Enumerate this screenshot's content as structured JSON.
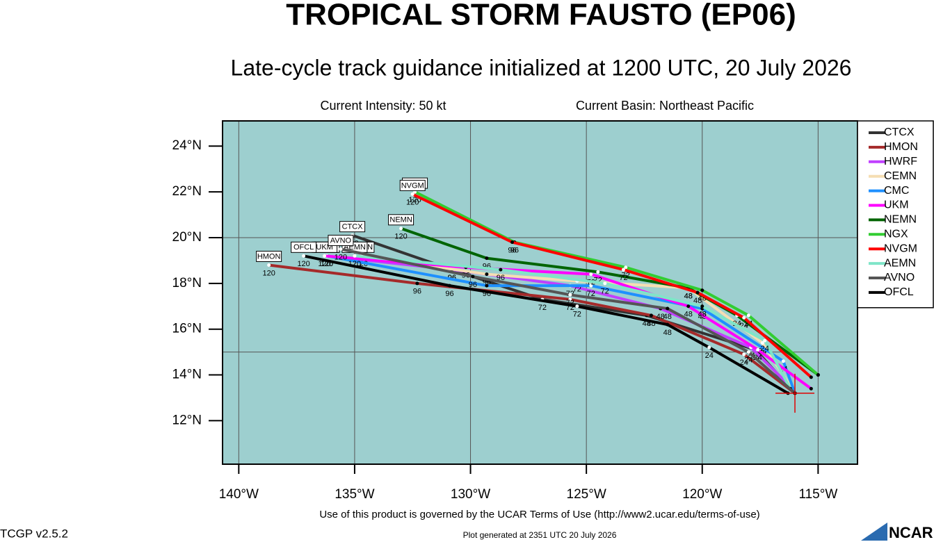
{
  "chart_data": {
    "type": "line",
    "title": "TROPICAL STORM FAUSTO (EP06)",
    "subtitle": "Late-cycle track guidance initialized at 1200 UTC, 20 July 2026",
    "intensity": "Current Intensity: 50 kt",
    "basin": "Current Basin: Northeast Pacific",
    "terms": "Use of this product is governed by the UCAR Terms of Use (http://www2.ucar.edu/terms-of-use)",
    "version": "TCGP v2.5.2",
    "generated": "Plot generated at 2351 UTC   20 July 2026",
    "logo": "NCAR",
    "xlim": [
      -140.7,
      -113.3
    ],
    "ylim": [
      10.1,
      25.1
    ],
    "xticks": [
      {
        "value": -140,
        "label": "140°W"
      },
      {
        "value": -135,
        "label": "135°W"
      },
      {
        "value": -130,
        "label": "130°W"
      },
      {
        "value": -125,
        "label": "125°W"
      },
      {
        "value": -120,
        "label": "120°W"
      },
      {
        "value": -115,
        "label": "115°W"
      }
    ],
    "yticks": [
      {
        "value": 12,
        "label": "12°N"
      },
      {
        "value": 14,
        "label": "14°N"
      },
      {
        "value": 16,
        "label": "16°N"
      },
      {
        "value": 18,
        "label": "18°N"
      },
      {
        "value": 20,
        "label": "20°N"
      },
      {
        "value": 22,
        "label": "22°N"
      },
      {
        "value": 24,
        "label": "24°N"
      }
    ],
    "ygrid": [
      15,
      20
    ],
    "background": "#9dcfcf",
    "hours": [
      null,
      24,
      48,
      72,
      96,
      120
    ],
    "current_position": {
      "x": -116.0,
      "y": 13.2
    },
    "legend": "right",
    "series": [
      {
        "name": "CTCX",
        "color": "#333333",
        "x": [
          -116.0,
          -117.7,
          -122.4,
          -126.9,
          -130.8,
          -135.1
        ],
        "values": [
          13.2,
          15.1,
          16.6,
          17.3,
          18.6,
          20.1
        ]
      },
      {
        "name": "HMON",
        "color": "#a52a2a",
        "x": [
          -116.0,
          -118.2,
          -122.2,
          -125.7,
          -132.3,
          -138.7
        ],
        "values": [
          13.2,
          14.9,
          16.6,
          17.3,
          18.0,
          18.8
        ]
      },
      {
        "name": "HWRF",
        "color": "#c040ff",
        "x": [
          -116.1,
          -117.9,
          -121.8,
          -125.7,
          -130.8,
          -136.2
        ],
        "values": [
          13.4,
          15.2,
          16.9,
          17.9,
          18.6,
          19.2
        ]
      },
      {
        "name": "CEMN",
        "color": "#f5deb3",
        "x": [
          -116.0,
          -117.4,
          -120.6,
          -125.4,
          -129.3,
          -134.7
        ],
        "values": [
          13.2,
          15.4,
          17.8,
          18.1,
          18.4,
          19.2
        ]
      },
      {
        "name": "CMC",
        "color": "#1e90ff",
        "x": [
          -116.0,
          -116.5,
          -120.0,
          -124.8,
          -129.3,
          -136.2
        ],
        "values": [
          13.2,
          14.6,
          16.9,
          17.9,
          17.9,
          19.2
        ]
      },
      {
        "name": "UKM",
        "color": "#ff00ff",
        "x": [
          -115.3,
          -117.6,
          -120.6,
          -124.8,
          -130.2,
          -136.3
        ],
        "values": [
          13.4,
          15.1,
          17.0,
          18.4,
          18.7,
          19.2
        ]
      },
      {
        "name": "NEMN",
        "color": "#006400",
        "x": [
          -115.0,
          -118.5,
          -120.6,
          -124.5,
          -129.3,
          -133.0
        ],
        "values": [
          14.0,
          16.6,
          17.8,
          18.5,
          19.1,
          20.4
        ]
      },
      {
        "name": "NGX",
        "color": "#32cd32",
        "x": [
          -115.0,
          -118.0,
          -120.0,
          -123.3,
          -128.1,
          -132.4
        ],
        "values": [
          14.0,
          16.6,
          17.7,
          18.7,
          19.8,
          22.0
        ]
      },
      {
        "name": "NVGM",
        "color": "#ff0000",
        "x": [
          -115.3,
          -118.2,
          -120.2,
          -123.4,
          -128.2,
          -132.5
        ],
        "values": [
          13.9,
          16.5,
          17.6,
          18.6,
          19.8,
          21.9
        ]
      },
      {
        "name": "AEMN",
        "color": "#7fe5c8",
        "x": [
          -116.2,
          -117.3,
          -120.0,
          -124.2,
          -128.7,
          -135.0
        ],
        "values": [
          13.4,
          15.5,
          17.0,
          18.0,
          18.6,
          19.2
        ]
      },
      {
        "name": "AVNO",
        "color": "#555555",
        "x": [
          -116.0,
          -118.0,
          -121.5,
          -125.7,
          -129.9,
          -135.6
        ],
        "values": [
          13.2,
          15.0,
          16.9,
          17.5,
          18.3,
          19.5
        ]
      },
      {
        "name": "OFCL",
        "color": "#000000",
        "x": [
          -116.3,
          -119.7,
          -121.5,
          -125.4,
          -130.9,
          -137.2
        ],
        "values": [
          13.2,
          15.2,
          16.2,
          17.0,
          17.9,
          19.2
        ]
      }
    ]
  }
}
